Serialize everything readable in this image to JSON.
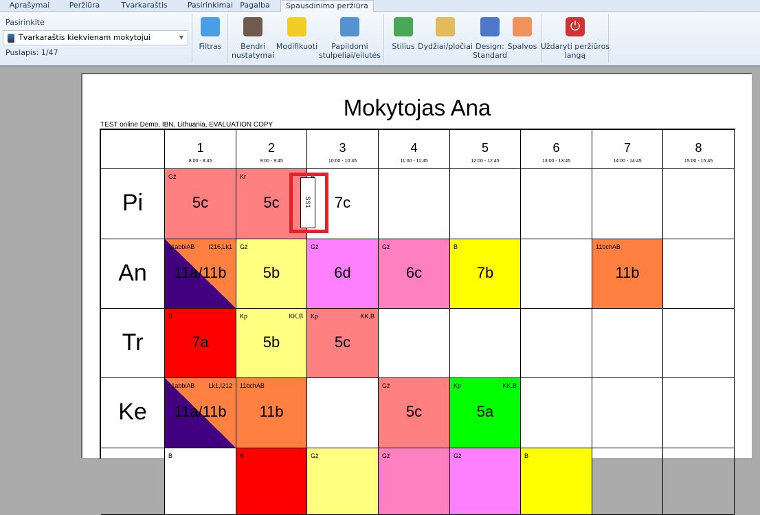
{
  "tabs": [
    "Aprašymai",
    "Peržiūra",
    "Tvarkaraštis",
    "Pasirinkimai",
    "Pagalba",
    "Spausdinimo peržiūra"
  ],
  "ribbon": {
    "select_label": "Pasirinkite",
    "select_value": "Tvarkaraštis kiekvienam mokytojui",
    "page_label": "Puslapis: 1/47",
    "buttons": [
      {
        "label": "Filtras",
        "icon": "funnel-icon"
      },
      {
        "label": "Bendri nustatymai",
        "icon": "stamp-icon"
      },
      {
        "label": "Modifikuoti",
        "icon": "magic-wand-icon"
      },
      {
        "label": "Papildomi stulpeliai/eilutės",
        "icon": "columns-icon"
      },
      {
        "label": "Stilius",
        "icon": "books-icon"
      },
      {
        "label": "Dydžiai/pločiai",
        "icon": "ruler-triangle-icon"
      },
      {
        "label": "Design: Standard",
        "icon": "design-icon"
      },
      {
        "label": "Spalvos",
        "icon": "color-palette-icon"
      },
      {
        "label": "Uždaryti peržiūros langą",
        "icon": "power-icon"
      }
    ]
  },
  "preview": {
    "title": "Mokytojas Ana",
    "subtitle": "TEST online Demo, IBN, Lithuania, EVALUATION COPY",
    "periods": [
      {
        "n": "1",
        "t": "8:00 - 8:45"
      },
      {
        "n": "2",
        "t": "9:00 - 9:45"
      },
      {
        "n": "3",
        "t": "10:00 - 10:45"
      },
      {
        "n": "4",
        "t": "11:00 - 11:45"
      },
      {
        "n": "5",
        "t": "12:00 - 12:45"
      },
      {
        "n": "6",
        "t": "13:00 - 13:45"
      },
      {
        "n": "7",
        "t": "14:00 - 14:45"
      },
      {
        "n": "8",
        "t": "15:00 - 15:45"
      }
    ],
    "days": [
      "Pi",
      "An",
      "Tr",
      "Ke",
      ""
    ],
    "drag_card": "SS1",
    "rows": [
      [
        {
          "s": "Gž",
          "c": "5c",
          "bg": "#ff8080"
        },
        {
          "s": "Kr",
          "c": "5c",
          "bg": "#ff8080"
        },
        {
          "s": "B",
          "c": "7c",
          "bg": "#ffffff"
        },
        {},
        {},
        {},
        {},
        {}
      ],
      [
        {
          "s": "11abbiAB",
          "r": "I216,Lk1",
          "c": "11a/11b",
          "bg": "#ff8040",
          "bg2": "#400080"
        },
        {
          "s": "Gž",
          "c": "5b",
          "bg": "#ffff80"
        },
        {
          "s": "Gž",
          "c": "6d",
          "bg": "#ff80ff"
        },
        {
          "s": "Gž",
          "c": "6c",
          "bg": "#ff80c0"
        },
        {
          "s": "B",
          "c": "7b",
          "bg": "#ffff00"
        },
        {},
        {
          "s": "11bchAB",
          "c": "11b",
          "bg": "#ff8040"
        },
        {}
      ],
      [
        {
          "s": "B",
          "c": "7a",
          "bg": "#ff0000"
        },
        {
          "s": "Kp",
          "r": "KK,B",
          "c": "5b",
          "bg": "#ffff80"
        },
        {
          "s": "Kp",
          "r": "KK,B",
          "c": "5c",
          "bg": "#ff8080"
        },
        {},
        {},
        {},
        {},
        {}
      ],
      [
        {
          "s": "11abbiAB",
          "r": "Lk1,I212",
          "c": "11a/11b",
          "bg": "#ff8040",
          "bg2": "#400080"
        },
        {
          "s": "11bchAB",
          "c": "11b",
          "bg": "#ff8040"
        },
        {},
        {
          "s": "Gž",
          "c": "5c",
          "bg": "#ff8080"
        },
        {
          "s": "Kp",
          "r": "KK,B",
          "c": "5a",
          "bg": "#00ff00"
        },
        {},
        {},
        {}
      ],
      [
        {
          "s": "B",
          "bg": "#ffffff"
        },
        {
          "s": "B",
          "bg": "#ff0000"
        },
        {
          "s": "Gž",
          "bg": "#ffff80"
        },
        {
          "s": "Gž",
          "bg": "#ff80c0"
        },
        {
          "s": "Gž",
          "bg": "#ff80ff"
        },
        {
          "s": "B",
          "bg": "#ffff00"
        },
        {},
        {}
      ]
    ]
  },
  "colors": {
    "highlight": "#e8202a"
  }
}
